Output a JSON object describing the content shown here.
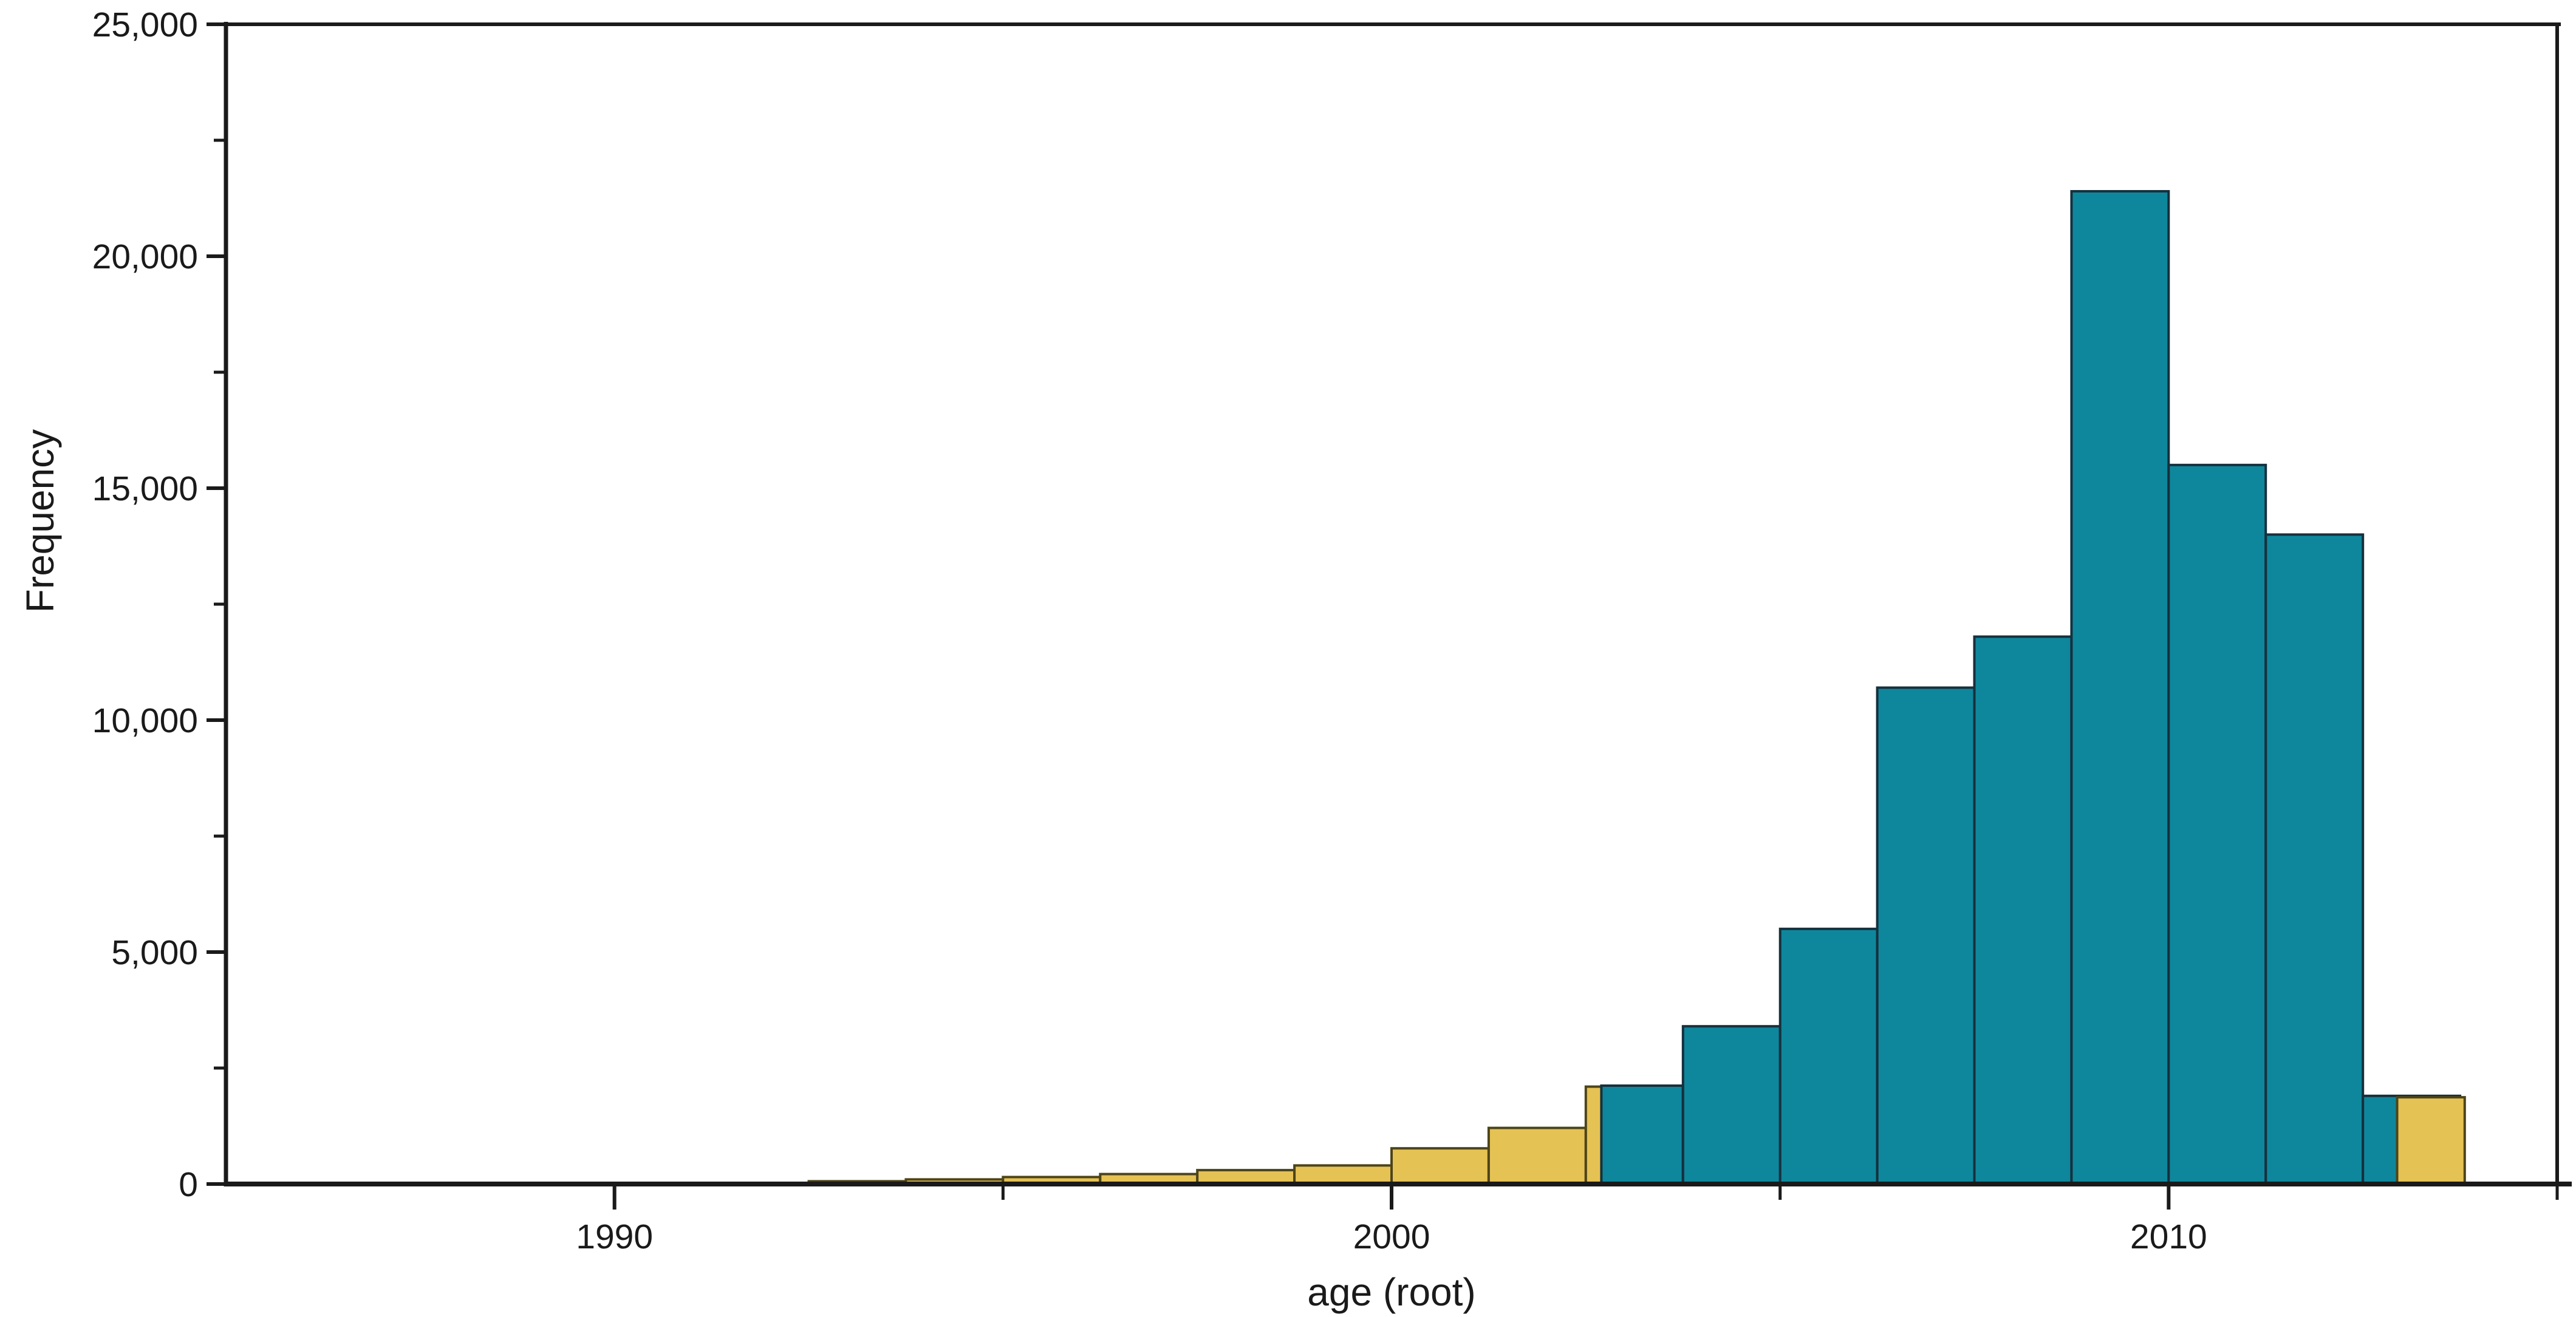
{
  "page": {
    "background": "#ffffff",
    "description": "Histogram of node ages: frequency vs age (root), overlapping gold and teal histograms"
  },
  "chart_data": {
    "type": "bar",
    "subtype": "overlaid-histograms",
    "title": "",
    "xlabel": "age (root)",
    "ylabel": "Frequency",
    "xlim": [
      1985,
      2015
    ],
    "ylim": [
      0,
      25000
    ],
    "grid": false,
    "legend_position": "none",
    "bin_width_years": 1.25,
    "x_major_ticks": [
      {
        "value": 1990,
        "label": "1990"
      },
      {
        "value": 2000,
        "label": "2000"
      },
      {
        "value": 2010,
        "label": "2010"
      }
    ],
    "x_minor_ticks": [
      1995,
      2005,
      2015
    ],
    "y_major_ticks": [
      {
        "value": 0,
        "label": "0"
      },
      {
        "value": 5000,
        "label": "5,000"
      },
      {
        "value": 10000,
        "label": "10,000"
      },
      {
        "value": 15000,
        "label": "15,000"
      },
      {
        "value": 20000,
        "label": "20,000"
      },
      {
        "value": 25000,
        "label": "25,000"
      }
    ],
    "y_minor_ticks": [
      2500,
      7500,
      12500,
      17500,
      22500
    ],
    "colors": {
      "gold_fill": "#e5c254",
      "gold_edge": "#4d4418",
      "teal_fill": "#0e879c",
      "teal_edge": "#16303d",
      "axis": "#1a1a1a"
    },
    "series": [
      {
        "name": "gold-histogram",
        "fill": "gold_fill",
        "edge": "gold_edge",
        "bins": [
          {
            "from": 1992.5,
            "to": 1993.75,
            "count": 60
          },
          {
            "from": 1993.75,
            "to": 1995.0,
            "count": 100
          },
          {
            "from": 1995.0,
            "to": 1996.25,
            "count": 150
          },
          {
            "from": 1996.25,
            "to": 1997.5,
            "count": 215
          },
          {
            "from": 1997.5,
            "to": 1998.75,
            "count": 300
          },
          {
            "from": 1998.75,
            "to": 2000.0,
            "count": 400
          },
          {
            "from": 2000.0,
            "to": 2001.25,
            "count": 770
          },
          {
            "from": 2001.25,
            "to": 2002.5,
            "count": 1210
          },
          {
            "from": 2002.5,
            "to": 2003.75,
            "count": 2100
          }
        ]
      },
      {
        "name": "teal-histogram",
        "fill": "teal_fill",
        "edge": "teal_edge",
        "bins": [
          {
            "from": 2002.7,
            "to": 2003.75,
            "count": 2120
          },
          {
            "from": 2003.75,
            "to": 2005.0,
            "count": 3400
          },
          {
            "from": 2005.0,
            "to": 2006.25,
            "count": 5500
          },
          {
            "from": 2006.25,
            "to": 2007.5,
            "count": 10700
          },
          {
            "from": 2007.5,
            "to": 2008.75,
            "count": 11800
          },
          {
            "from": 2008.75,
            "to": 2010.0,
            "count": 21400
          },
          {
            "from": 2010.0,
            "to": 2011.25,
            "count": 15500
          },
          {
            "from": 2011.25,
            "to": 2012.5,
            "count": 14000
          },
          {
            "from": 2012.5,
            "to": 2013.75,
            "count": 1900
          }
        ]
      },
      {
        "name": "gold-histogram-overlay",
        "fill": "gold_fill",
        "edge": "gold_edge",
        "bins": [
          {
            "from": 2012.94,
            "to": 2013.81,
            "count": 1870
          }
        ]
      }
    ]
  }
}
